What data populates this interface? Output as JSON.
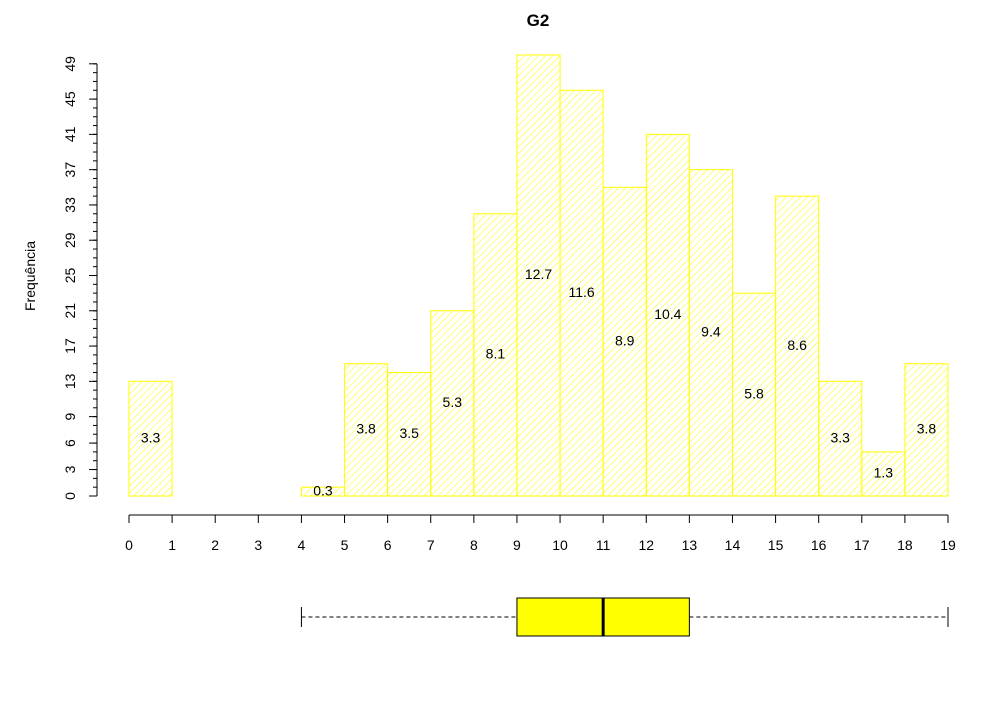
{
  "chart_data": {
    "type": "bar",
    "title": "G2",
    "ylabel": "Frequência",
    "xlabel": "",
    "bin_edges": [
      0,
      1,
      2,
      3,
      4,
      5,
      6,
      7,
      8,
      9,
      10,
      11,
      12,
      13,
      14,
      15,
      16,
      17,
      18,
      19
    ],
    "x_ticks": [
      "0",
      "1",
      "2",
      "3",
      "4",
      "5",
      "6",
      "7",
      "8",
      "9",
      "10",
      "11",
      "12",
      "13",
      "14",
      "15",
      "16",
      "17",
      "18",
      "19"
    ],
    "values": [
      13,
      0,
      0,
      0,
      1,
      15,
      14,
      21,
      32,
      50,
      46,
      35,
      41,
      37,
      23,
      34,
      13,
      5,
      15
    ],
    "percent_labels": [
      "3.3",
      "",
      "",
      "",
      "0.3",
      "3.8",
      "3.5",
      "5.3",
      "8.1",
      "12.7",
      "11.6",
      "8.9",
      "10.4",
      "9.4",
      "5.8",
      "8.6",
      "3.3",
      "1.3",
      "3.8"
    ],
    "y_ticks": [
      "0",
      "3",
      "6",
      "9",
      "13",
      "17",
      "21",
      "25",
      "29",
      "33",
      "37",
      "41",
      "45",
      "49"
    ],
    "xlim": [
      0,
      19
    ],
    "ylim": [
      0,
      50
    ],
    "bar_color": "#ffff00",
    "boxplot": {
      "min": 4,
      "q1": 9,
      "median": 11,
      "q3": 13,
      "max": 19,
      "fill_color": "#ffff00"
    }
  }
}
